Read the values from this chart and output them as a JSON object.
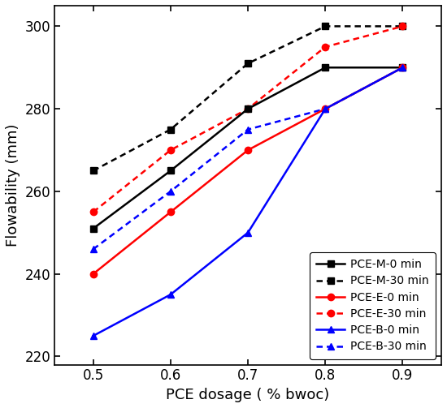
{
  "x": [
    0.5,
    0.6,
    0.7,
    0.8,
    0.9
  ],
  "PCE_M_0": [
    251,
    265,
    280,
    290,
    290
  ],
  "PCE_M_30": [
    265,
    275,
    291,
    300,
    300
  ],
  "PCE_E_0": [
    240,
    255,
    270,
    280,
    290
  ],
  "PCE_E_30": [
    255,
    270,
    280,
    295,
    300
  ],
  "PCE_B_0": [
    225,
    235,
    250,
    280,
    290
  ],
  "PCE_B_30": [
    246,
    260,
    275,
    280,
    290
  ],
  "xlabel": "PCE dosage ( % bwoc)",
  "ylabel": "Flowability (mm)",
  "xlim": [
    0.45,
    0.95
  ],
  "ylim": [
    218,
    305
  ],
  "yticks": [
    220,
    240,
    260,
    280,
    300
  ],
  "xticks": [
    0.5,
    0.6,
    0.7,
    0.8,
    0.9
  ],
  "color_black": "#000000",
  "color_red": "#ff0000",
  "color_blue": "#0000ff",
  "legend_labels": [
    "PCE-M-0 min",
    "PCE-M-30 min",
    "PCE-E-0 min",
    "PCE-E-30 min",
    "PCE-B-0 min",
    "PCE-B-30 min"
  ]
}
